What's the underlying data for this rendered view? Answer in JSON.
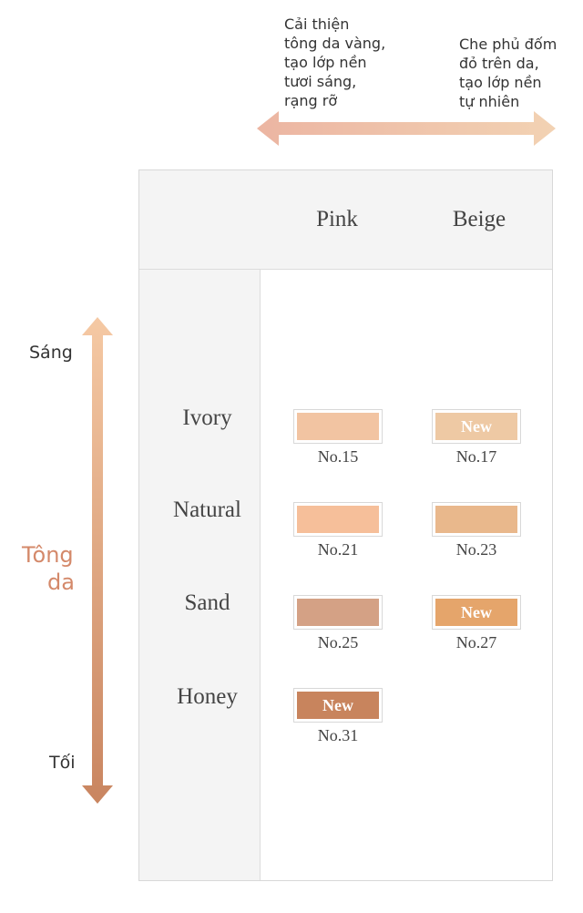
{
  "top_legend": {
    "left_text": "Cải thiện\ntông da vàng,\ntạo lớp nền\ntươi sáng,\nrạng rỡ",
    "right_text": "Che phủ đốm\nđỏ trên da,\ntạo lớp nền\ntự nhiên",
    "arrow_colors": [
      "#ecb5a2",
      "#f2d2b3"
    ]
  },
  "side_axis": {
    "light_label": "Sáng",
    "tone_label_line1": "Tông",
    "tone_label_line2": "da",
    "dark_label": "Tối",
    "arrow_colors": [
      "#f5c9a4",
      "#c98560"
    ]
  },
  "table": {
    "columns": [
      "Pink",
      "Beige"
    ],
    "rows": [
      {
        "label": "Ivory",
        "pink": {
          "code": "No.15",
          "color": "#f2c4a2",
          "badge": ""
        },
        "beige": {
          "code": "No.17",
          "color": "#eec9a4",
          "badge": "New"
        }
      },
      {
        "label": "Natural",
        "pink": {
          "code": "No.21",
          "color": "#f6bf9a",
          "badge": ""
        },
        "beige": {
          "code": "No.23",
          "color": "#e9b88c",
          "badge": ""
        }
      },
      {
        "label": "Sand",
        "pink": {
          "code": "No.25",
          "color": "#d4a185",
          "badge": ""
        },
        "beige": {
          "code": "No.27",
          "color": "#e5a56b",
          "badge": "New"
        }
      },
      {
        "label": "Honey",
        "pink": {
          "code": "No.31",
          "color": "#c8845d",
          "badge": "New"
        },
        "beige": null
      }
    ]
  }
}
